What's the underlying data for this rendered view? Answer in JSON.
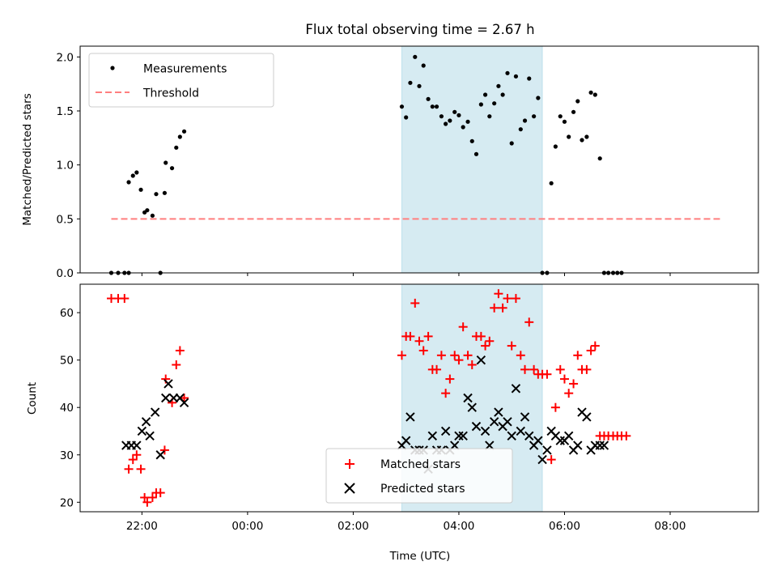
{
  "chart_data": [
    {
      "type": "scatter",
      "title": "Flux total observing time = 2.67 h",
      "xlabel": "",
      "ylabel": "Matched/Predicted stars",
      "xlim": [
        -1.17,
        11.67
      ],
      "ylim": [
        0.0,
        2.1
      ],
      "yticks": [
        0.0,
        0.5,
        1.0,
        1.5,
        2.0
      ],
      "ytick_labels": [
        "0.0",
        "0.5",
        "1.0",
        "1.5",
        "2.0"
      ],
      "highlight_span": [
        4.92,
        7.58
      ],
      "legend": {
        "placement": "top-left",
        "entries": [
          "Measurements",
          "Threshold"
        ]
      },
      "threshold": {
        "name": "Threshold",
        "y": 0.5,
        "x": [
          -0.58,
          11.0
        ],
        "color": "#ff7f7f"
      },
      "series": [
        {
          "name": "Measurements",
          "color": "#000000",
          "marker": "dot",
          "x": [
            -0.58,
            -0.45,
            -0.33,
            -0.25,
            -0.25,
            -0.17,
            -0.1,
            -0.02,
            0.05,
            0.1,
            0.2,
            0.27,
            0.35,
            0.43,
            0.45,
            0.57,
            0.65,
            0.72,
            0.8,
            4.92,
            5.0,
            5.08,
            5.17,
            5.25,
            5.33,
            5.42,
            5.5,
            5.58,
            5.67,
            5.75,
            5.83,
            5.92,
            6.0,
            6.08,
            6.17,
            6.25,
            6.33,
            6.42,
            6.5,
            6.58,
            6.67,
            6.75,
            6.83,
            6.92,
            7.0,
            7.08,
            7.17,
            7.25,
            7.33,
            7.42,
            7.5,
            7.58,
            7.67,
            7.75,
            7.83,
            7.92,
            8.0,
            8.08,
            8.17,
            8.25,
            8.33,
            8.42,
            8.5,
            8.58,
            8.67,
            8.75,
            8.83,
            8.92,
            9.0,
            9.08
          ],
          "y": [
            0.0,
            0.0,
            0.0,
            0.0,
            0.84,
            0.9,
            0.93,
            0.77,
            0.56,
            0.58,
            0.53,
            0.73,
            0.0,
            0.74,
            1.02,
            0.97,
            1.16,
            1.26,
            1.31,
            1.54,
            1.44,
            1.76,
            2.0,
            1.73,
            1.92,
            1.61,
            1.54,
            1.54,
            1.45,
            1.38,
            1.41,
            1.49,
            1.46,
            1.35,
            1.4,
            1.22,
            1.1,
            1.56,
            1.65,
            1.45,
            1.57,
            1.73,
            1.65,
            1.85,
            1.2,
            1.82,
            1.33,
            1.41,
            1.8,
            1.45,
            1.62,
            0.0,
            0.0,
            0.83,
            1.17,
            1.45,
            1.4,
            1.26,
            1.49,
            1.59,
            1.23,
            1.26,
            1.67,
            1.65,
            1.06,
            0.0,
            0.0,
            0.0,
            0.0,
            0.0
          ]
        }
      ]
    },
    {
      "type": "scatter",
      "title": "",
      "xlabel": "Time (UTC)",
      "ylabel": "Count",
      "xlim": [
        -1.17,
        11.67
      ],
      "ylim": [
        18,
        66
      ],
      "yticks": [
        20,
        30,
        40,
        50,
        60
      ],
      "ytick_labels": [
        "20",
        "30",
        "40",
        "50",
        "60"
      ],
      "xticks": [
        0,
        2,
        4,
        6,
        8,
        10
      ],
      "xtick_labels": [
        "22:00",
        "00:00",
        "02:00",
        "04:00",
        "06:00",
        "08:00"
      ],
      "highlight_span": [
        4.92,
        7.58
      ],
      "legend": {
        "placement": "lower-center",
        "entries": [
          "Matched stars",
          "Predicted stars"
        ]
      },
      "series": [
        {
          "name": "Matched stars",
          "color": "#ff0000",
          "marker": "plus",
          "x": [
            -0.58,
            -0.45,
            -0.33,
            -0.25,
            -0.17,
            -0.1,
            -0.02,
            0.05,
            0.1,
            0.2,
            0.27,
            0.35,
            0.43,
            0.45,
            0.57,
            0.65,
            0.72,
            0.8,
            4.92,
            5.0,
            5.08,
            5.17,
            5.25,
            5.33,
            5.42,
            5.5,
            5.58,
            5.67,
            5.75,
            5.83,
            5.92,
            6.0,
            6.08,
            6.17,
            6.25,
            6.33,
            6.42,
            6.5,
            6.58,
            6.67,
            6.75,
            6.83,
            6.92,
            7.0,
            7.08,
            7.17,
            7.25,
            7.33,
            7.42,
            7.5,
            7.58,
            7.67,
            7.75,
            7.83,
            7.92,
            8.0,
            8.08,
            8.17,
            8.25,
            8.33,
            8.42,
            8.5,
            8.58,
            8.67,
            8.75,
            8.83,
            8.92,
            9.0,
            9.08,
            9.17
          ],
          "y": [
            63,
            63,
            63,
            27,
            29,
            30,
            27,
            21,
            20,
            21,
            22,
            22,
            31,
            46,
            41,
            49,
            52,
            42,
            51,
            55,
            55,
            62,
            54,
            52,
            55,
            48,
            48,
            51,
            43,
            46,
            51,
            50,
            57,
            51,
            49,
            55,
            55,
            53,
            54,
            61,
            64,
            61,
            63,
            53,
            63,
            51,
            48,
            58,
            48,
            47,
            47,
            47,
            29,
            40,
            48,
            46,
            43,
            45,
            51,
            48,
            48,
            52,
            53,
            34,
            34,
            34,
            34,
            34,
            34,
            34
          ]
        },
        {
          "name": "Predicted stars",
          "color": "#000000",
          "marker": "x",
          "x": [
            -0.3,
            -0.2,
            -0.1,
            0.0,
            0.08,
            0.15,
            0.25,
            0.35,
            0.45,
            0.5,
            0.6,
            0.72,
            0.8,
            4.92,
            5.0,
            5.08,
            5.17,
            5.25,
            5.33,
            5.42,
            5.5,
            5.58,
            5.67,
            5.75,
            5.83,
            5.92,
            6.0,
            6.08,
            6.17,
            6.25,
            6.33,
            6.42,
            6.5,
            6.58,
            6.67,
            6.75,
            6.83,
            6.92,
            7.0,
            7.08,
            7.17,
            7.25,
            7.33,
            7.42,
            7.5,
            7.58,
            7.67,
            7.75,
            7.83,
            7.92,
            8.0,
            8.08,
            8.17,
            8.25,
            8.33,
            8.42,
            8.5,
            8.58,
            8.67,
            8.75
          ],
          "y": [
            32,
            32,
            32,
            35,
            37,
            34,
            39,
            30,
            42,
            45,
            42,
            42,
            41,
            32,
            33,
            38,
            31,
            31,
            31,
            27,
            34,
            31,
            31,
            35,
            31,
            32,
            34,
            34,
            42,
            40,
            36,
            50,
            35,
            32,
            37,
            39,
            36,
            37,
            34,
            44,
            35,
            38,
            34,
            32,
            33,
            29,
            31,
            35,
            34,
            33,
            33,
            34,
            31,
            32,
            39,
            38,
            31,
            32,
            32,
            32
          ]
        }
      ]
    }
  ]
}
